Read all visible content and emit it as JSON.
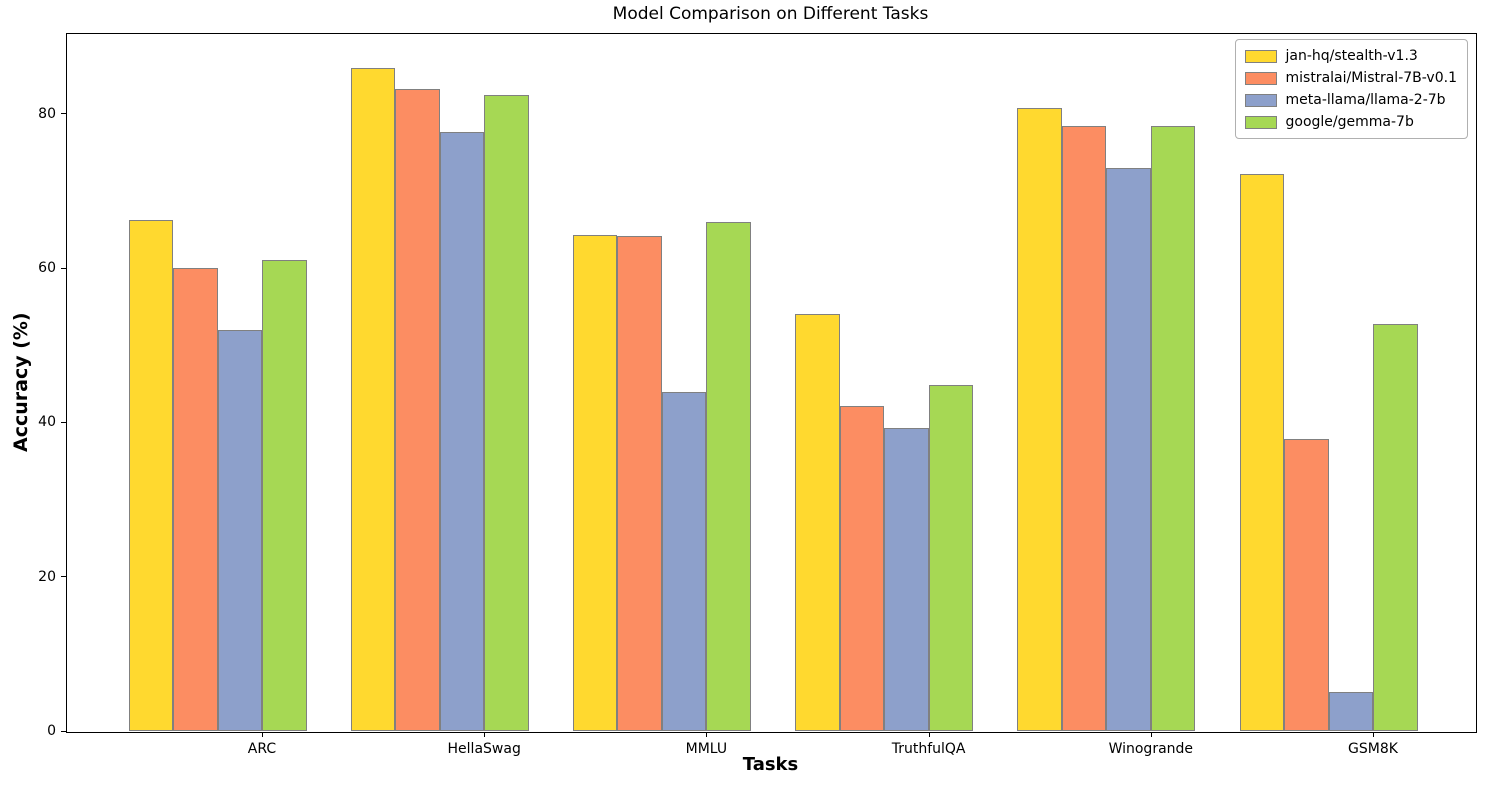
{
  "chart_data": {
    "type": "bar",
    "title": "Model Comparison on Different Tasks",
    "xlabel": "Tasks",
    "ylabel": "Accuracy (%)",
    "categories": [
      "ARC",
      "HellaSwag",
      "MMLU",
      "TruthfulQA",
      "Winogrande",
      "GSM8K"
    ],
    "series": [
      {
        "name": "jan-hq/stealth-v1.3",
        "color": "#FFD92F",
        "values": [
          66.3,
          86.0,
          64.3,
          54.1,
          80.8,
          72.2
        ]
      },
      {
        "name": "mistralai/Mistral-7B-v0.1",
        "color": "#FC8D62",
        "values": [
          60.0,
          83.3,
          64.2,
          42.2,
          78.4,
          37.8
        ]
      },
      {
        "name": "meta-llama/llama-2-7b",
        "color": "#8DA0CB",
        "values": [
          52.0,
          77.7,
          44.0,
          39.3,
          73.0,
          5.0
        ]
      },
      {
        "name": "google/gemma-7b",
        "color": "#A6D854",
        "values": [
          61.1,
          82.5,
          66.0,
          44.8,
          78.5,
          52.8
        ]
      }
    ],
    "ylim": [
      0,
      90.5
    ],
    "yticks": [
      0,
      20,
      40,
      60,
      80
    ],
    "bar_edge_color": "#808080",
    "legend_position": "upper right",
    "grid": false
  }
}
